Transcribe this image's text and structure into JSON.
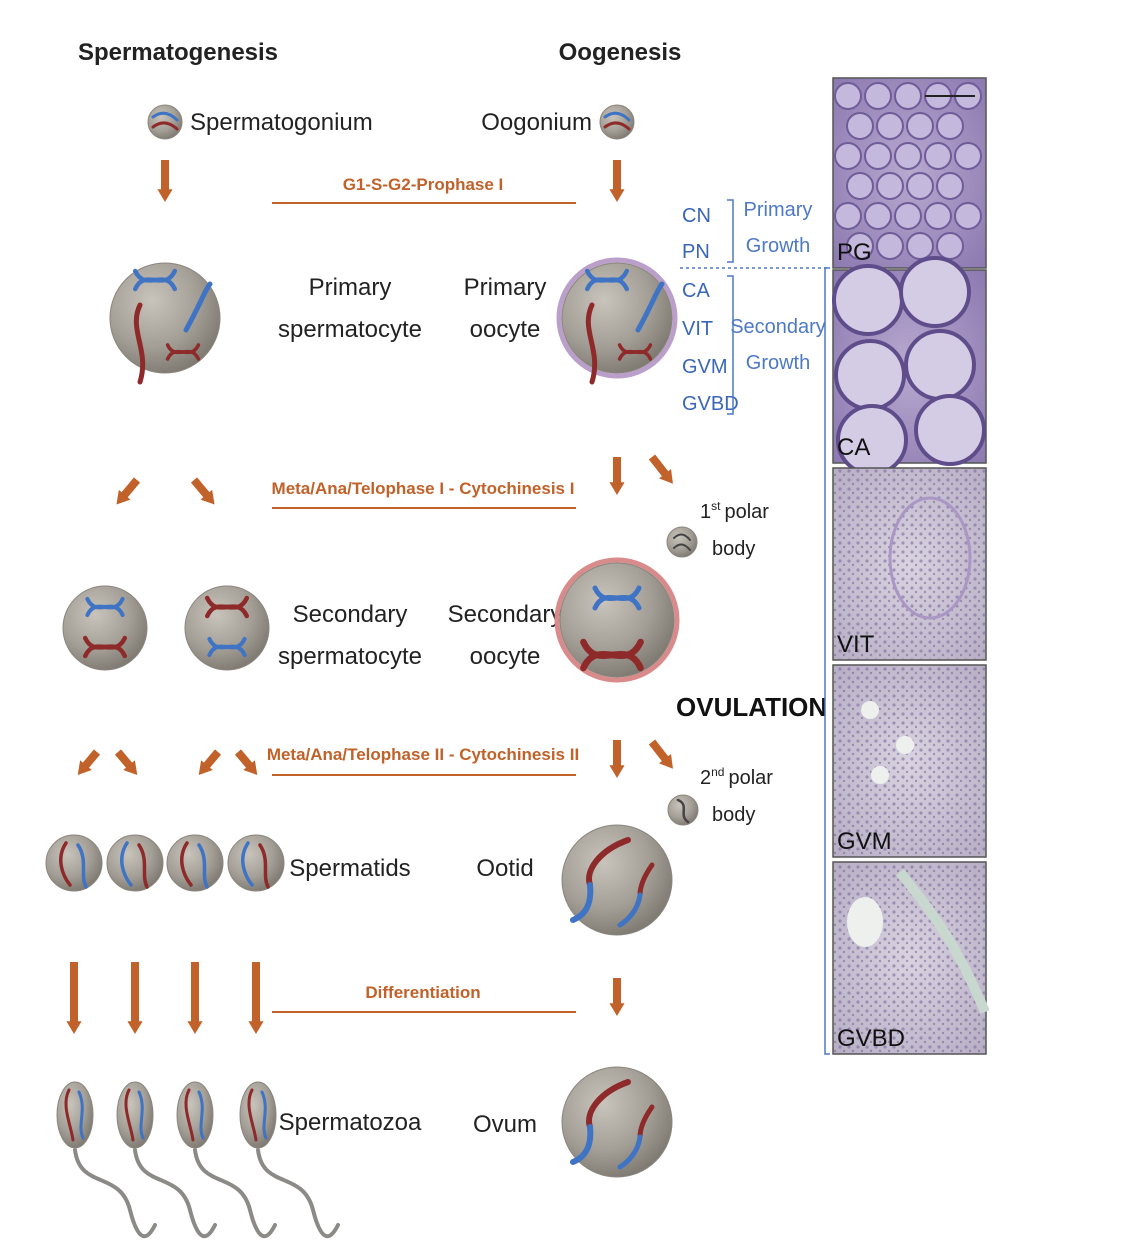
{
  "headers": {
    "spermatogenesis": "Spermatogenesis",
    "oogenesis": "Oogenesis"
  },
  "phases": [
    "G1-S-G2-Prophase I",
    "Meta/Ana/Telophase I - Cytochinesis I",
    "Meta/Ana/Telophase II - Cytochinesis II",
    "Differentiation"
  ],
  "sperm_labels": {
    "spermatogonium": "Spermatogonium",
    "primary": [
      "Primary",
      "spermatocyte"
    ],
    "secondary": [
      "Secondary",
      "spermatocyte"
    ],
    "spermatids": "Spermatids",
    "spermatozoa": "Spermatozoa"
  },
  "oo_labels": {
    "oogonium": "Oogonium",
    "primary": [
      "Primary",
      "oocyte"
    ],
    "secondary": [
      "Secondary",
      "oocyte"
    ],
    "ootid": "Ootid",
    "ovum": "Ovum"
  },
  "polar_bodies": {
    "first": {
      "num": "1",
      "sup": "st",
      "word1": "polar",
      "word2": "body"
    },
    "second": {
      "num": "2",
      "sup": "nd",
      "word1": "polar",
      "word2": "body"
    }
  },
  "ovulation": "OVULATION",
  "stages": [
    "CN",
    "PN",
    "CA",
    "VIT",
    "GVM",
    "GVBD"
  ],
  "growth": {
    "primary": [
      "Primary",
      "Growth"
    ],
    "secondary": [
      "Secondary",
      "Growth"
    ]
  },
  "histology": [
    {
      "label": "PG",
      "tone": "purple"
    },
    {
      "label": "CA",
      "tone": "purple"
    },
    {
      "label": "VIT",
      "tone": "pale"
    },
    {
      "label": "GVM",
      "tone": "pale"
    },
    {
      "label": "GVBD",
      "tone": "pale"
    }
  ],
  "colors": {
    "arrow": "#c0622a",
    "chrom_blue": "#3f73c4",
    "chrom_red": "#8e2a2a",
    "cell_fill": "#a39e96",
    "stage_blue": "#3a66b8"
  }
}
